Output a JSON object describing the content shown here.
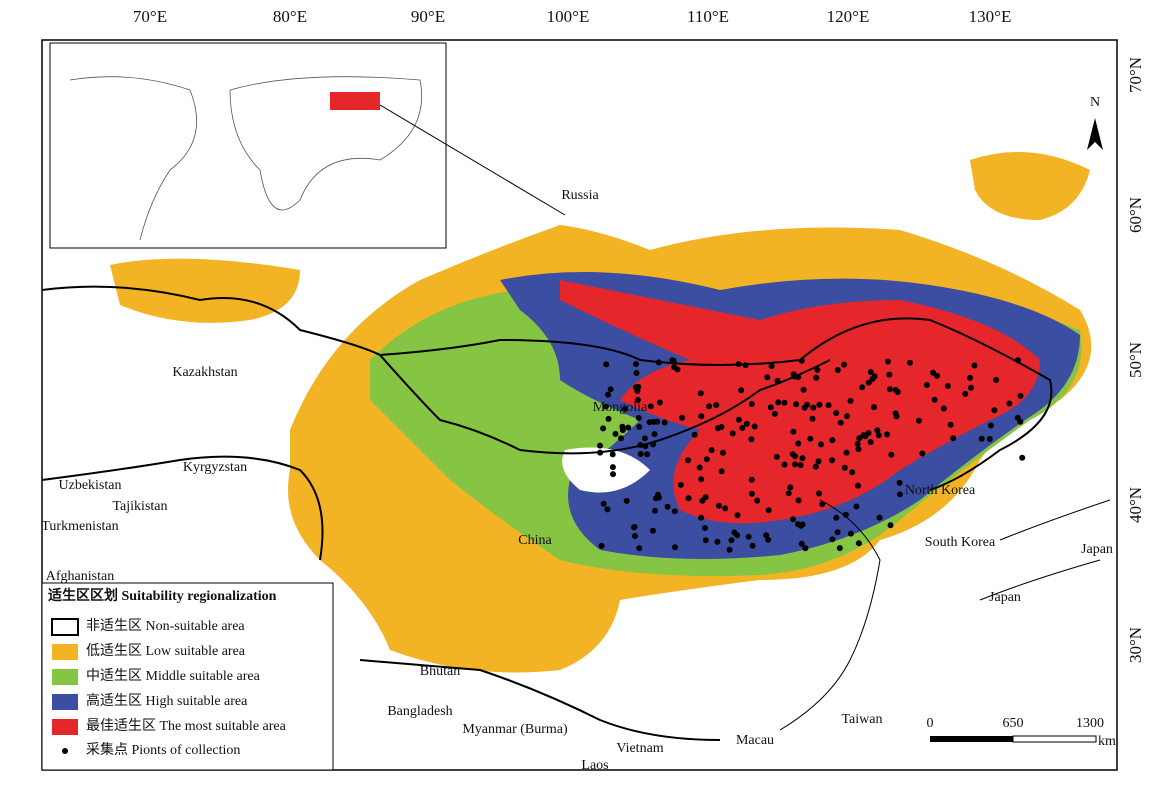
{
  "axes": {
    "longitude": [
      "70°E",
      "80°E",
      "90°E",
      "100°E",
      "110°E",
      "120°E",
      "130°E"
    ],
    "latitude": [
      "70°N",
      "60°N",
      "50°N",
      "40°N",
      "30°N"
    ]
  },
  "places": [
    "Russia",
    "Kazakhstan",
    "Mongolia",
    "Kyrgyzstan",
    "Uzbekistan",
    "Tajikistan",
    "Turkmenistan",
    "Afghanistan",
    "China",
    "North Korea",
    "South Korea",
    "Japan",
    "Japan",
    "Bhutan",
    "Bangladesh",
    "Myanmar (Burma)",
    "Vietnam",
    "Laos",
    "Macau",
    "Taiwan"
  ],
  "north": "N",
  "legend": {
    "title": "适生区区划 Suitability regionalization",
    "items": [
      "非适生区 Non-suitable area",
      "低适生区 Low suitable area",
      "中适生区 Middle suitable area",
      "高适生区 High suitable area",
      "最佳适生区 The most suitable area",
      "采集点 Pionts of collection"
    ]
  },
  "scale": {
    "labels": [
      "0",
      "650",
      "1300"
    ],
    "unit": "km"
  }
}
